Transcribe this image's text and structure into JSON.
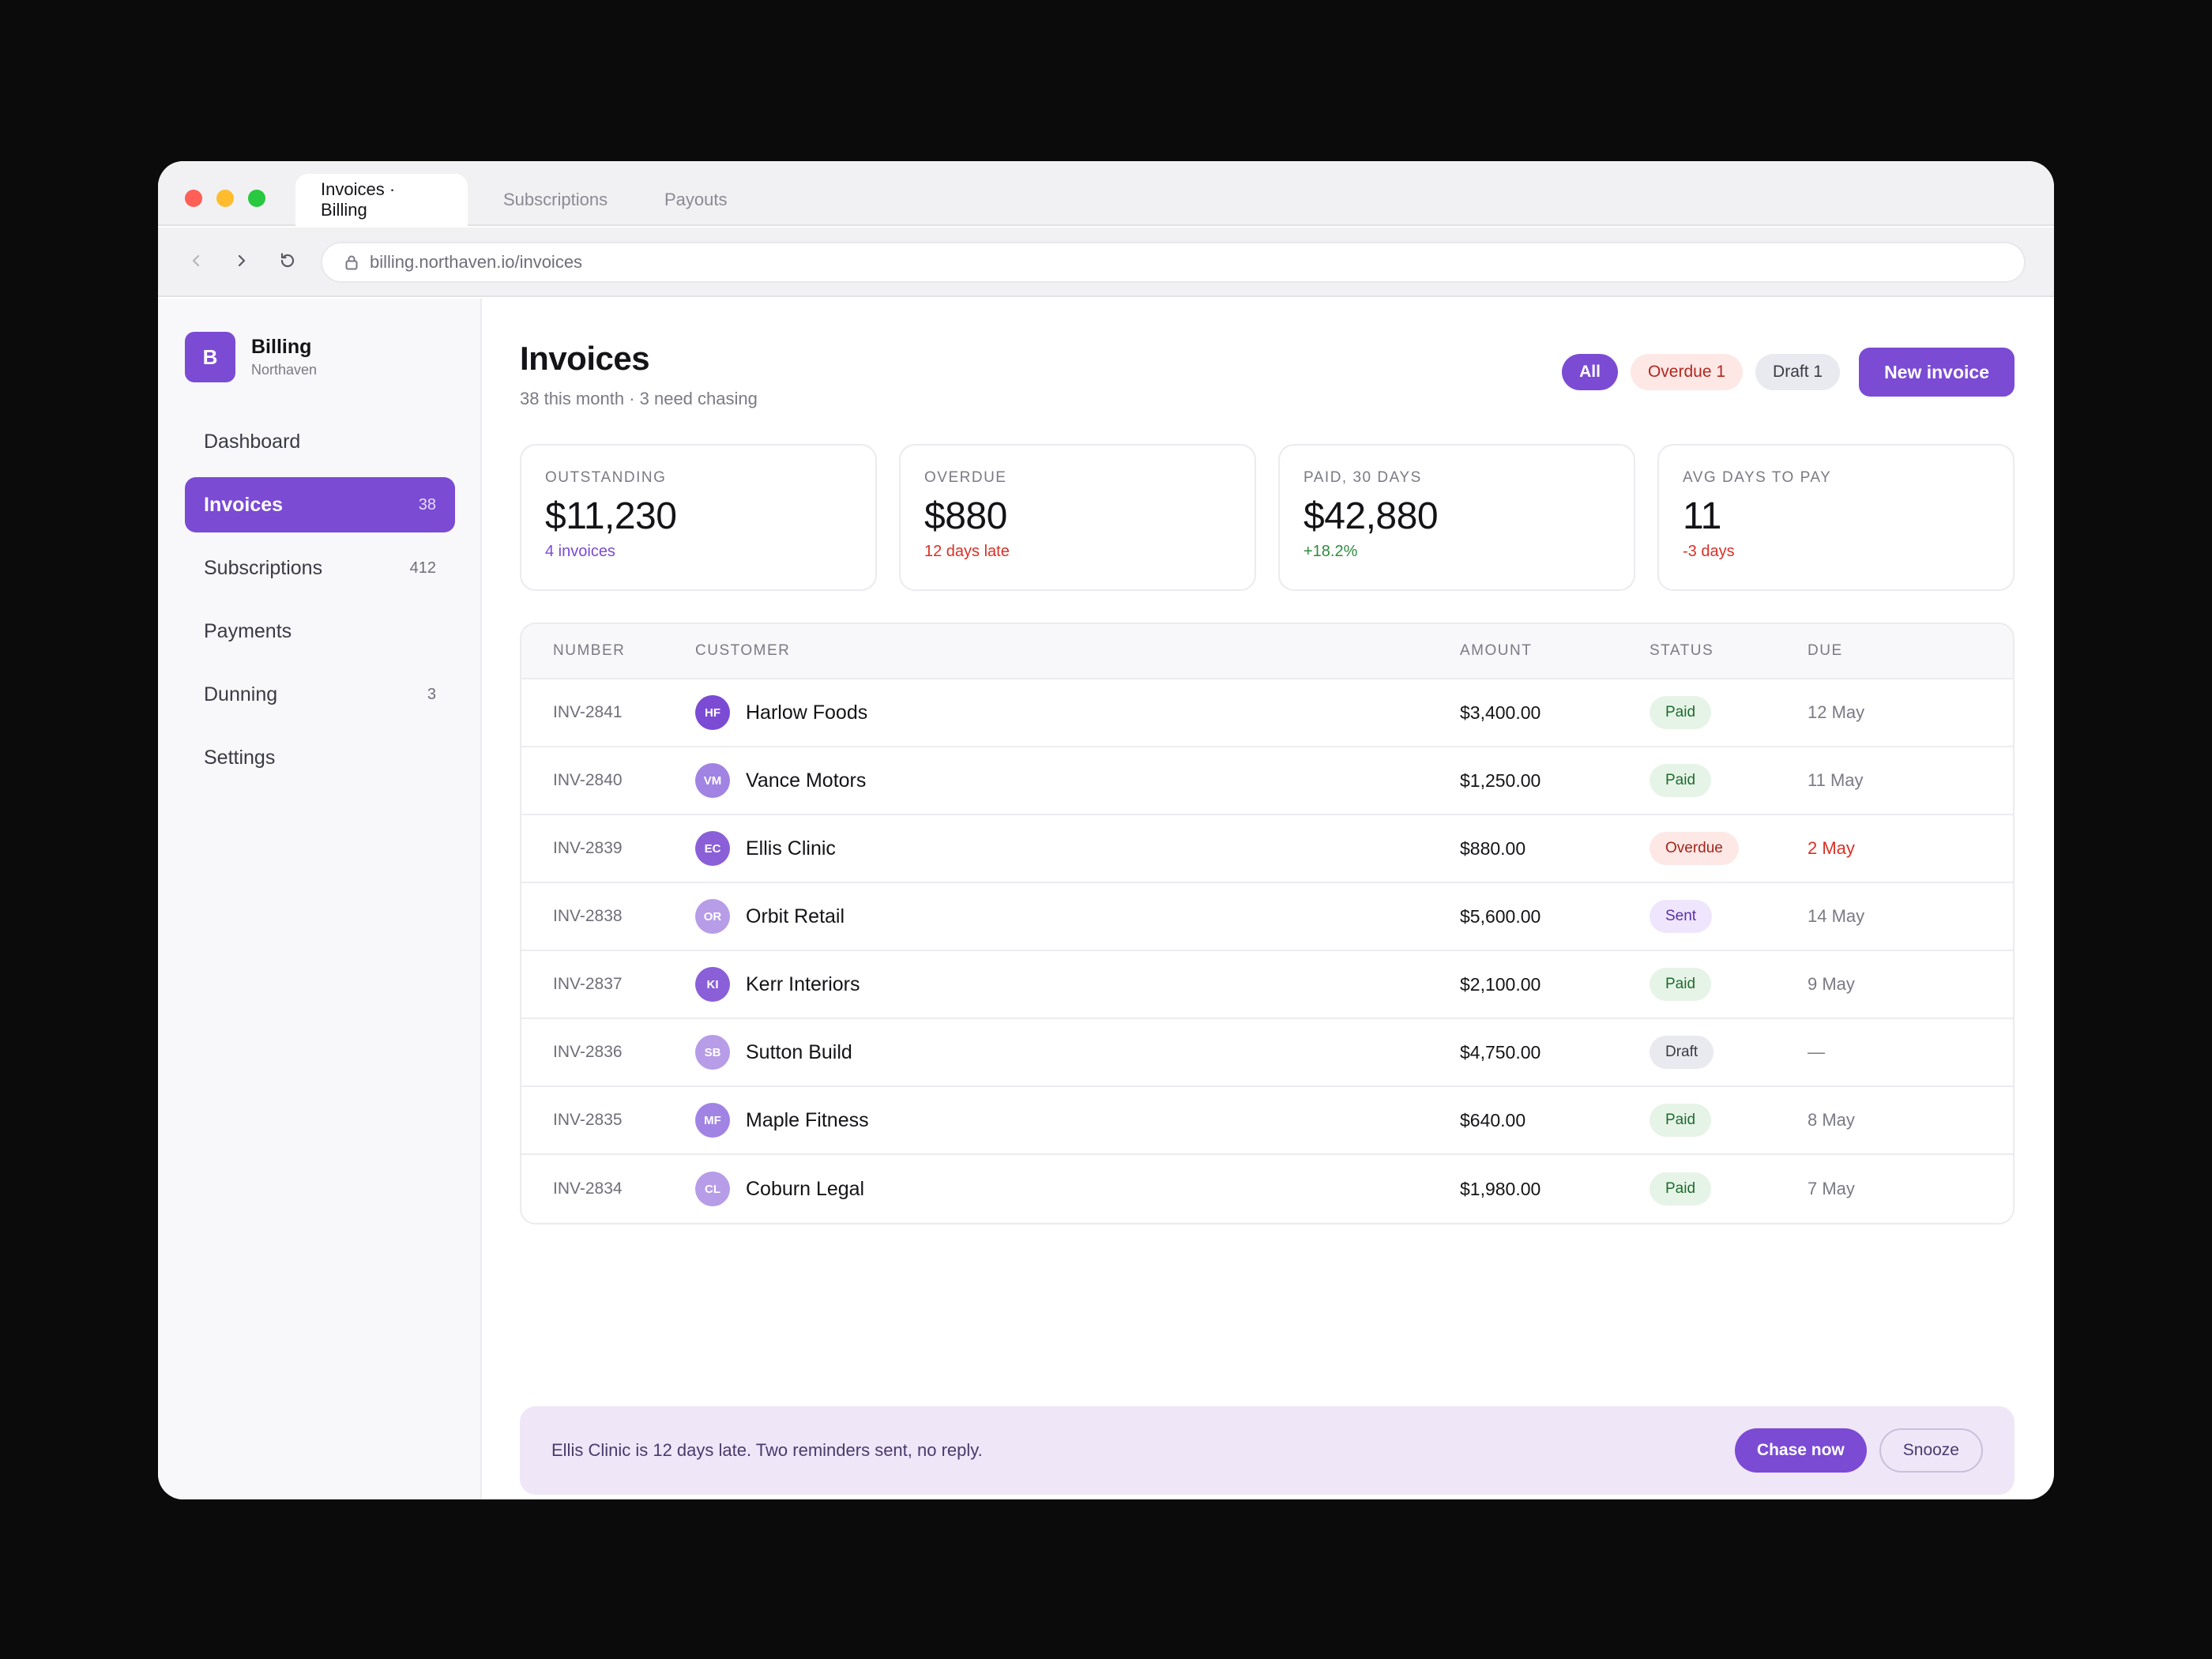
{
  "browser": {
    "tabs": [
      {
        "label": "Invoices · Billing"
      },
      {
        "label": "Subscriptions"
      },
      {
        "label": "Payouts"
      }
    ],
    "url": "billing.northaven.io/invoices"
  },
  "sidebar": {
    "brand_letter": "B",
    "brand_name": "Billing",
    "brand_sub": "Northaven",
    "items": [
      {
        "label": "Dashboard",
        "count": ""
      },
      {
        "label": "Invoices",
        "count": "38"
      },
      {
        "label": "Subscriptions",
        "count": "412"
      },
      {
        "label": "Payments",
        "count": ""
      },
      {
        "label": "Dunning",
        "count": "3"
      },
      {
        "label": "Settings",
        "count": ""
      }
    ]
  },
  "header": {
    "title": "Invoices",
    "subtitle": "38 this month · 3 need chasing",
    "filters": {
      "all": "All",
      "overdue": "Overdue 1",
      "draft": "Draft 1"
    },
    "new_button": "New invoice"
  },
  "stats": [
    {
      "label": "OUTSTANDING",
      "value": "$11,230",
      "note": "4 invoices"
    },
    {
      "label": "OVERDUE",
      "value": "$880",
      "note": "12 days late"
    },
    {
      "label": "PAID, 30 DAYS",
      "value": "$42,880",
      "note": "+18.2%"
    },
    {
      "label": "AVG DAYS TO PAY",
      "value": "11",
      "note": "-3 days"
    }
  ],
  "table": {
    "columns": {
      "number": "NUMBER",
      "customer": "CUSTOMER",
      "amount": "AMOUNT",
      "status": "STATUS",
      "due": "DUE"
    },
    "rows": [
      {
        "number": "INV-2841",
        "initials": "HF",
        "customer": "Harlow Foods",
        "amount": "$3,400.00",
        "status": "Paid",
        "due": "12 May"
      },
      {
        "number": "INV-2840",
        "initials": "VM",
        "customer": "Vance Motors",
        "amount": "$1,250.00",
        "status": "Paid",
        "due": "11 May"
      },
      {
        "number": "INV-2839",
        "initials": "EC",
        "customer": "Ellis Clinic",
        "amount": "$880.00",
        "status": "Overdue",
        "due": "2 May"
      },
      {
        "number": "INV-2838",
        "initials": "OR",
        "customer": "Orbit Retail",
        "amount": "$5,600.00",
        "status": "Sent",
        "due": "14 May"
      },
      {
        "number": "INV-2837",
        "initials": "KI",
        "customer": "Kerr Interiors",
        "amount": "$2,100.00",
        "status": "Paid",
        "due": "9 May"
      },
      {
        "number": "INV-2836",
        "initials": "SB",
        "customer": "Sutton Build",
        "amount": "$4,750.00",
        "status": "Draft",
        "due": "—"
      },
      {
        "number": "INV-2835",
        "initials": "MF",
        "customer": "Maple Fitness",
        "amount": "$640.00",
        "status": "Paid",
        "due": "8 May"
      },
      {
        "number": "INV-2834",
        "initials": "CL",
        "customer": "Coburn Legal",
        "amount": "$1,980.00",
        "status": "Paid",
        "due": "7 May"
      }
    ]
  },
  "alert": {
    "text": "Ellis Clinic is 12 days late. Two reminders sent, no reply.",
    "chase": "Chase now",
    "snooze": "Snooze"
  },
  "colors": {
    "accent": "#7b4bd4",
    "danger": "#d93025",
    "success": "#2e8b3d"
  },
  "icons": {
    "back": "chevron-left-icon",
    "forward": "chevron-right-icon",
    "reload": "reload-icon",
    "lock": "lock-icon"
  }
}
